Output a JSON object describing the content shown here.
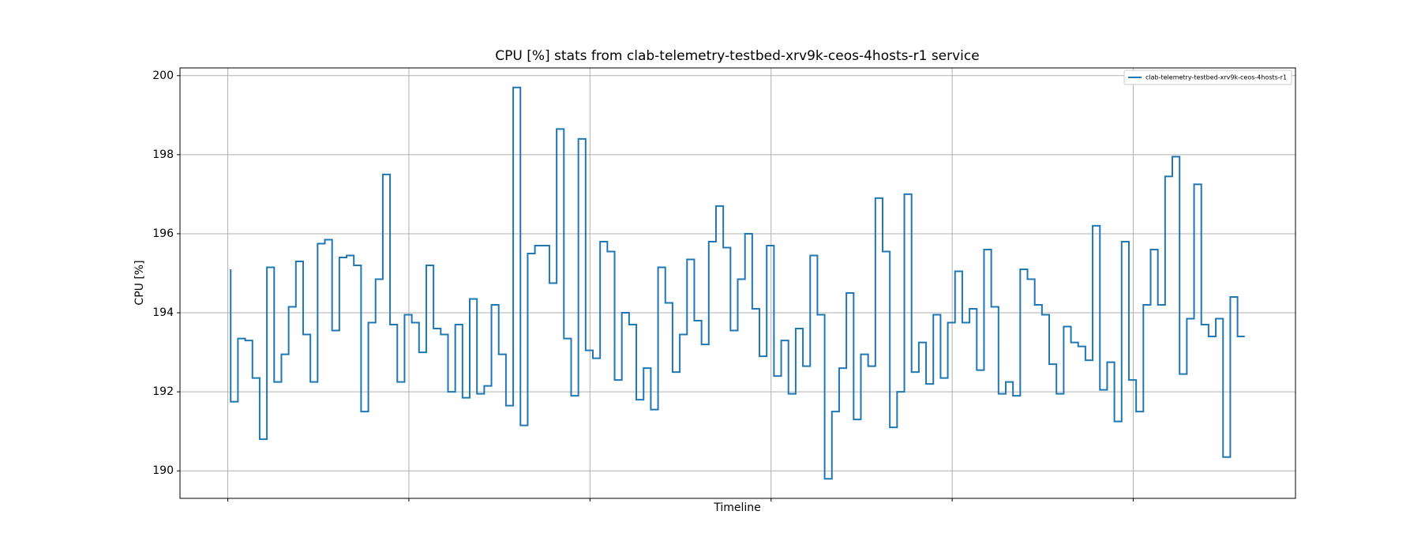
{
  "chart_data": {
    "type": "step",
    "title": "CPU [%] stats from clab-telemetry-testbed-xrv9k-ceos-4hosts-r1 service",
    "x_label": "Timeline",
    "y_label": "CPU [%]",
    "x": [
      0,
      1,
      2,
      3,
      4,
      5,
      6,
      7,
      8,
      9,
      10,
      11,
      12,
      13,
      14,
      15,
      16,
      17,
      18,
      19,
      20,
      21,
      22,
      23,
      24,
      25,
      26,
      27,
      28,
      29,
      30,
      31,
      32,
      33,
      34,
      35,
      36,
      37,
      38,
      39,
      40,
      41,
      42,
      43,
      44,
      45,
      46,
      47,
      48,
      49,
      50,
      51,
      52,
      53,
      54,
      55,
      56,
      57,
      58,
      59,
      60,
      61,
      62,
      63,
      64,
      65,
      66,
      67,
      68,
      69,
      70,
      71,
      72,
      73,
      74,
      75,
      76,
      77,
      78,
      79,
      80,
      81,
      82,
      83,
      84,
      85,
      86,
      87,
      88,
      89,
      90,
      91,
      92,
      93,
      94,
      95,
      96,
      97,
      98,
      99,
      100,
      101,
      102,
      103,
      104,
      105,
      106,
      107,
      108,
      109,
      110,
      111,
      112,
      113,
      114,
      115,
      116,
      117,
      118,
      119,
      120,
      121,
      122,
      123,
      124,
      125,
      126,
      127,
      128,
      129,
      130,
      131,
      132,
      133,
      134,
      135,
      136,
      137,
      138,
      139,
      140
    ],
    "series": [
      {
        "name": "clab-telemetry-testbed-xrv9k-ceos-4hosts-r1",
        "color": "#1f77b4",
        "values": [
          195.1,
          191.75,
          193.35,
          193.3,
          192.35,
          190.8,
          195.15,
          192.25,
          192.95,
          194.15,
          195.3,
          193.45,
          192.25,
          195.75,
          195.85,
          193.55,
          195.4,
          195.45,
          195.2,
          191.5,
          193.75,
          194.85,
          197.5,
          193.7,
          192.25,
          193.95,
          193.75,
          193.0,
          195.2,
          193.6,
          193.45,
          192.0,
          193.7,
          191.85,
          194.35,
          191.95,
          192.15,
          194.2,
          192.95,
          191.65,
          199.7,
          191.15,
          195.5,
          195.7,
          195.7,
          194.75,
          198.65,
          193.35,
          191.9,
          198.4,
          193.05,
          192.85,
          195.8,
          195.55,
          192.3,
          194.0,
          193.7,
          191.8,
          192.6,
          191.55,
          195.15,
          194.25,
          192.5,
          193.45,
          195.35,
          193.8,
          193.2,
          195.8,
          196.7,
          195.65,
          193.55,
          194.85,
          196.0,
          194.1,
          192.9,
          195.7,
          192.4,
          193.3,
          191.95,
          193.6,
          192.65,
          195.45,
          193.95,
          189.8,
          191.5,
          192.6,
          194.5,
          191.3,
          192.95,
          192.65,
          196.9,
          195.55,
          191.1,
          192.0,
          197.0,
          192.5,
          193.25,
          192.2,
          193.95,
          192.35,
          193.75,
          195.05,
          193.75,
          194.1,
          192.55,
          195.6,
          194.15,
          191.95,
          192.25,
          191.9,
          195.1,
          194.85,
          194.2,
          193.95,
          192.7,
          191.95,
          193.65,
          193.25,
          193.15,
          192.8,
          196.2,
          192.05,
          192.75,
          191.25,
          195.8,
          192.3,
          191.5,
          194.2,
          195.6,
          194.2,
          197.45,
          197.95,
          192.45,
          193.85,
          197.25,
          193.7,
          193.4,
          193.85,
          190.35,
          194.4,
          193.4
        ]
      }
    ],
    "xlim": [
      -7,
      147
    ],
    "xticks": [
      -0.4,
      24.6,
      49.6,
      74.6,
      99.6,
      124.6
    ],
    "ylim": [
      189.305,
      200.195
    ],
    "yticks": [
      190,
      192,
      194,
      196,
      198,
      200
    ],
    "grid": true,
    "legend": "upper right"
  }
}
